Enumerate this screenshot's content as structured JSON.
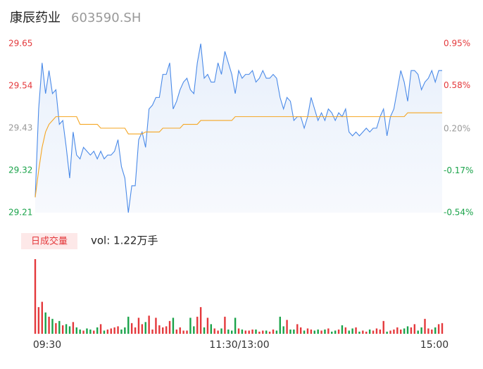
{
  "chart_data": {
    "type": "line",
    "title": "康辰药业",
    "code": "603590.SH",
    "ylim": [
      29.21,
      29.65
    ],
    "yticks": [
      29.65,
      29.54,
      29.43,
      29.32,
      29.21
    ],
    "y2lim": [
      -0.54,
      0.95
    ],
    "y2ticks": [
      {
        "value": 0.95,
        "label": "0.95%"
      },
      {
        "value": 0.58,
        "label": "0.58%"
      },
      {
        "value": 0.2,
        "label": "0.20%"
      },
      {
        "value": -0.17,
        "label": "-0.17%"
      },
      {
        "value": -0.54,
        "label": "-0.54%"
      }
    ],
    "up_color": "#e4393c",
    "down_color": "#1aa34a",
    "flat_color": "#999999",
    "xlabels": [
      "09:30",
      "11:30/13:00",
      "15:00"
    ],
    "series": [
      {
        "color": "#4a8ae8",
        "values": [
          29.25,
          29.48,
          29.6,
          29.52,
          29.58,
          29.52,
          29.53,
          29.44,
          29.45,
          29.38,
          29.3,
          29.42,
          29.36,
          29.35,
          29.38,
          29.37,
          29.36,
          29.37,
          29.35,
          29.37,
          29.35,
          29.36,
          29.36,
          29.37,
          29.4,
          29.33,
          29.3,
          29.21,
          29.28,
          29.28,
          29.4,
          29.42,
          29.38,
          29.48,
          29.49,
          29.51,
          29.51,
          29.57,
          29.57,
          29.6,
          29.48,
          29.5,
          29.53,
          29.55,
          29.56,
          29.53,
          29.52,
          29.6,
          29.65,
          29.56,
          29.57,
          29.55,
          29.55,
          29.6,
          29.57,
          29.63,
          29.6,
          29.57,
          29.52,
          29.58,
          29.56,
          29.57,
          29.57,
          29.58,
          29.55,
          29.56,
          29.58,
          29.56,
          29.56,
          29.57,
          29.56,
          29.51,
          29.48,
          29.51,
          29.5,
          29.45,
          29.46,
          29.46,
          29.43,
          29.46,
          29.51,
          29.48,
          29.45,
          29.47,
          29.45,
          29.48,
          29.47,
          29.45,
          29.47,
          29.46,
          29.48,
          29.42,
          29.41,
          29.42,
          29.41,
          29.42,
          29.43,
          29.42,
          29.43,
          29.43,
          29.46,
          29.48,
          29.41,
          29.46,
          29.48,
          29.53,
          29.58,
          29.55,
          29.5,
          29.58,
          29.58,
          29.57,
          29.53,
          29.55,
          29.56,
          29.58,
          29.55,
          29.58,
          29.58
        ]
      },
      {
        "color": "#f5a623",
        "values": [
          29.25,
          29.32,
          29.38,
          29.42,
          29.44,
          29.45,
          29.46,
          29.46,
          29.46,
          29.46,
          29.46,
          29.46,
          29.46,
          29.44,
          29.44,
          29.44,
          29.44,
          29.44,
          29.44,
          29.43,
          29.43,
          29.43,
          29.43,
          29.43,
          29.43,
          29.43,
          29.43,
          29.415,
          29.415,
          29.415,
          29.415,
          29.415,
          29.42,
          29.42,
          29.42,
          29.42,
          29.42,
          29.43,
          29.43,
          29.43,
          29.43,
          29.43,
          29.43,
          29.44,
          29.44,
          29.44,
          29.44,
          29.44,
          29.45,
          29.45,
          29.45,
          29.45,
          29.45,
          29.45,
          29.45,
          29.45,
          29.45,
          29.45,
          29.46,
          29.46,
          29.46,
          29.46,
          29.46,
          29.46,
          29.46,
          29.46,
          29.46,
          29.46,
          29.46,
          29.46,
          29.46,
          29.46,
          29.46,
          29.46,
          29.46,
          29.46,
          29.46,
          29.46,
          29.46,
          29.46,
          29.46,
          29.46,
          29.46,
          29.46,
          29.46,
          29.46,
          29.46,
          29.46,
          29.46,
          29.46,
          29.46,
          29.46,
          29.46,
          29.46,
          29.46,
          29.46,
          29.46,
          29.46,
          29.46,
          29.46,
          29.46,
          29.46,
          29.46,
          29.46,
          29.46,
          29.46,
          29.46,
          29.46,
          29.47,
          29.47,
          29.47,
          29.47,
          29.47,
          29.47,
          29.47,
          29.47,
          29.47,
          29.47,
          29.47
        ]
      }
    ],
    "volume": {
      "label": "日成交量",
      "summary": "vol: 1.22万手",
      "values": [
        700,
        250,
        300,
        200,
        160,
        140,
        100,
        120,
        80,
        90,
        70,
        110,
        60,
        40,
        30,
        50,
        40,
        30,
        60,
        90,
        30,
        40,
        50,
        60,
        70,
        40,
        60,
        160,
        100,
        60,
        150,
        90,
        110,
        170,
        40,
        150,
        80,
        60,
        70,
        120,
        150,
        40,
        60,
        30,
        30,
        150,
        70,
        160,
        250,
        60,
        150,
        90,
        50,
        30,
        50,
        160,
        40,
        30,
        150,
        50,
        40,
        30,
        30,
        40,
        40,
        20,
        30,
        30,
        20,
        40,
        30,
        160,
        70,
        130,
        40,
        40,
        90,
        60,
        30,
        50,
        40,
        30,
        40,
        30,
        40,
        50,
        20,
        30,
        40,
        80,
        60,
        30,
        50,
        60,
        20,
        30,
        20,
        40,
        30,
        50,
        40,
        120,
        20,
        30,
        40,
        60,
        40,
        50,
        70,
        60,
        90,
        30,
        60,
        140,
        50,
        40,
        60,
        90,
        100
      ]
    }
  }
}
